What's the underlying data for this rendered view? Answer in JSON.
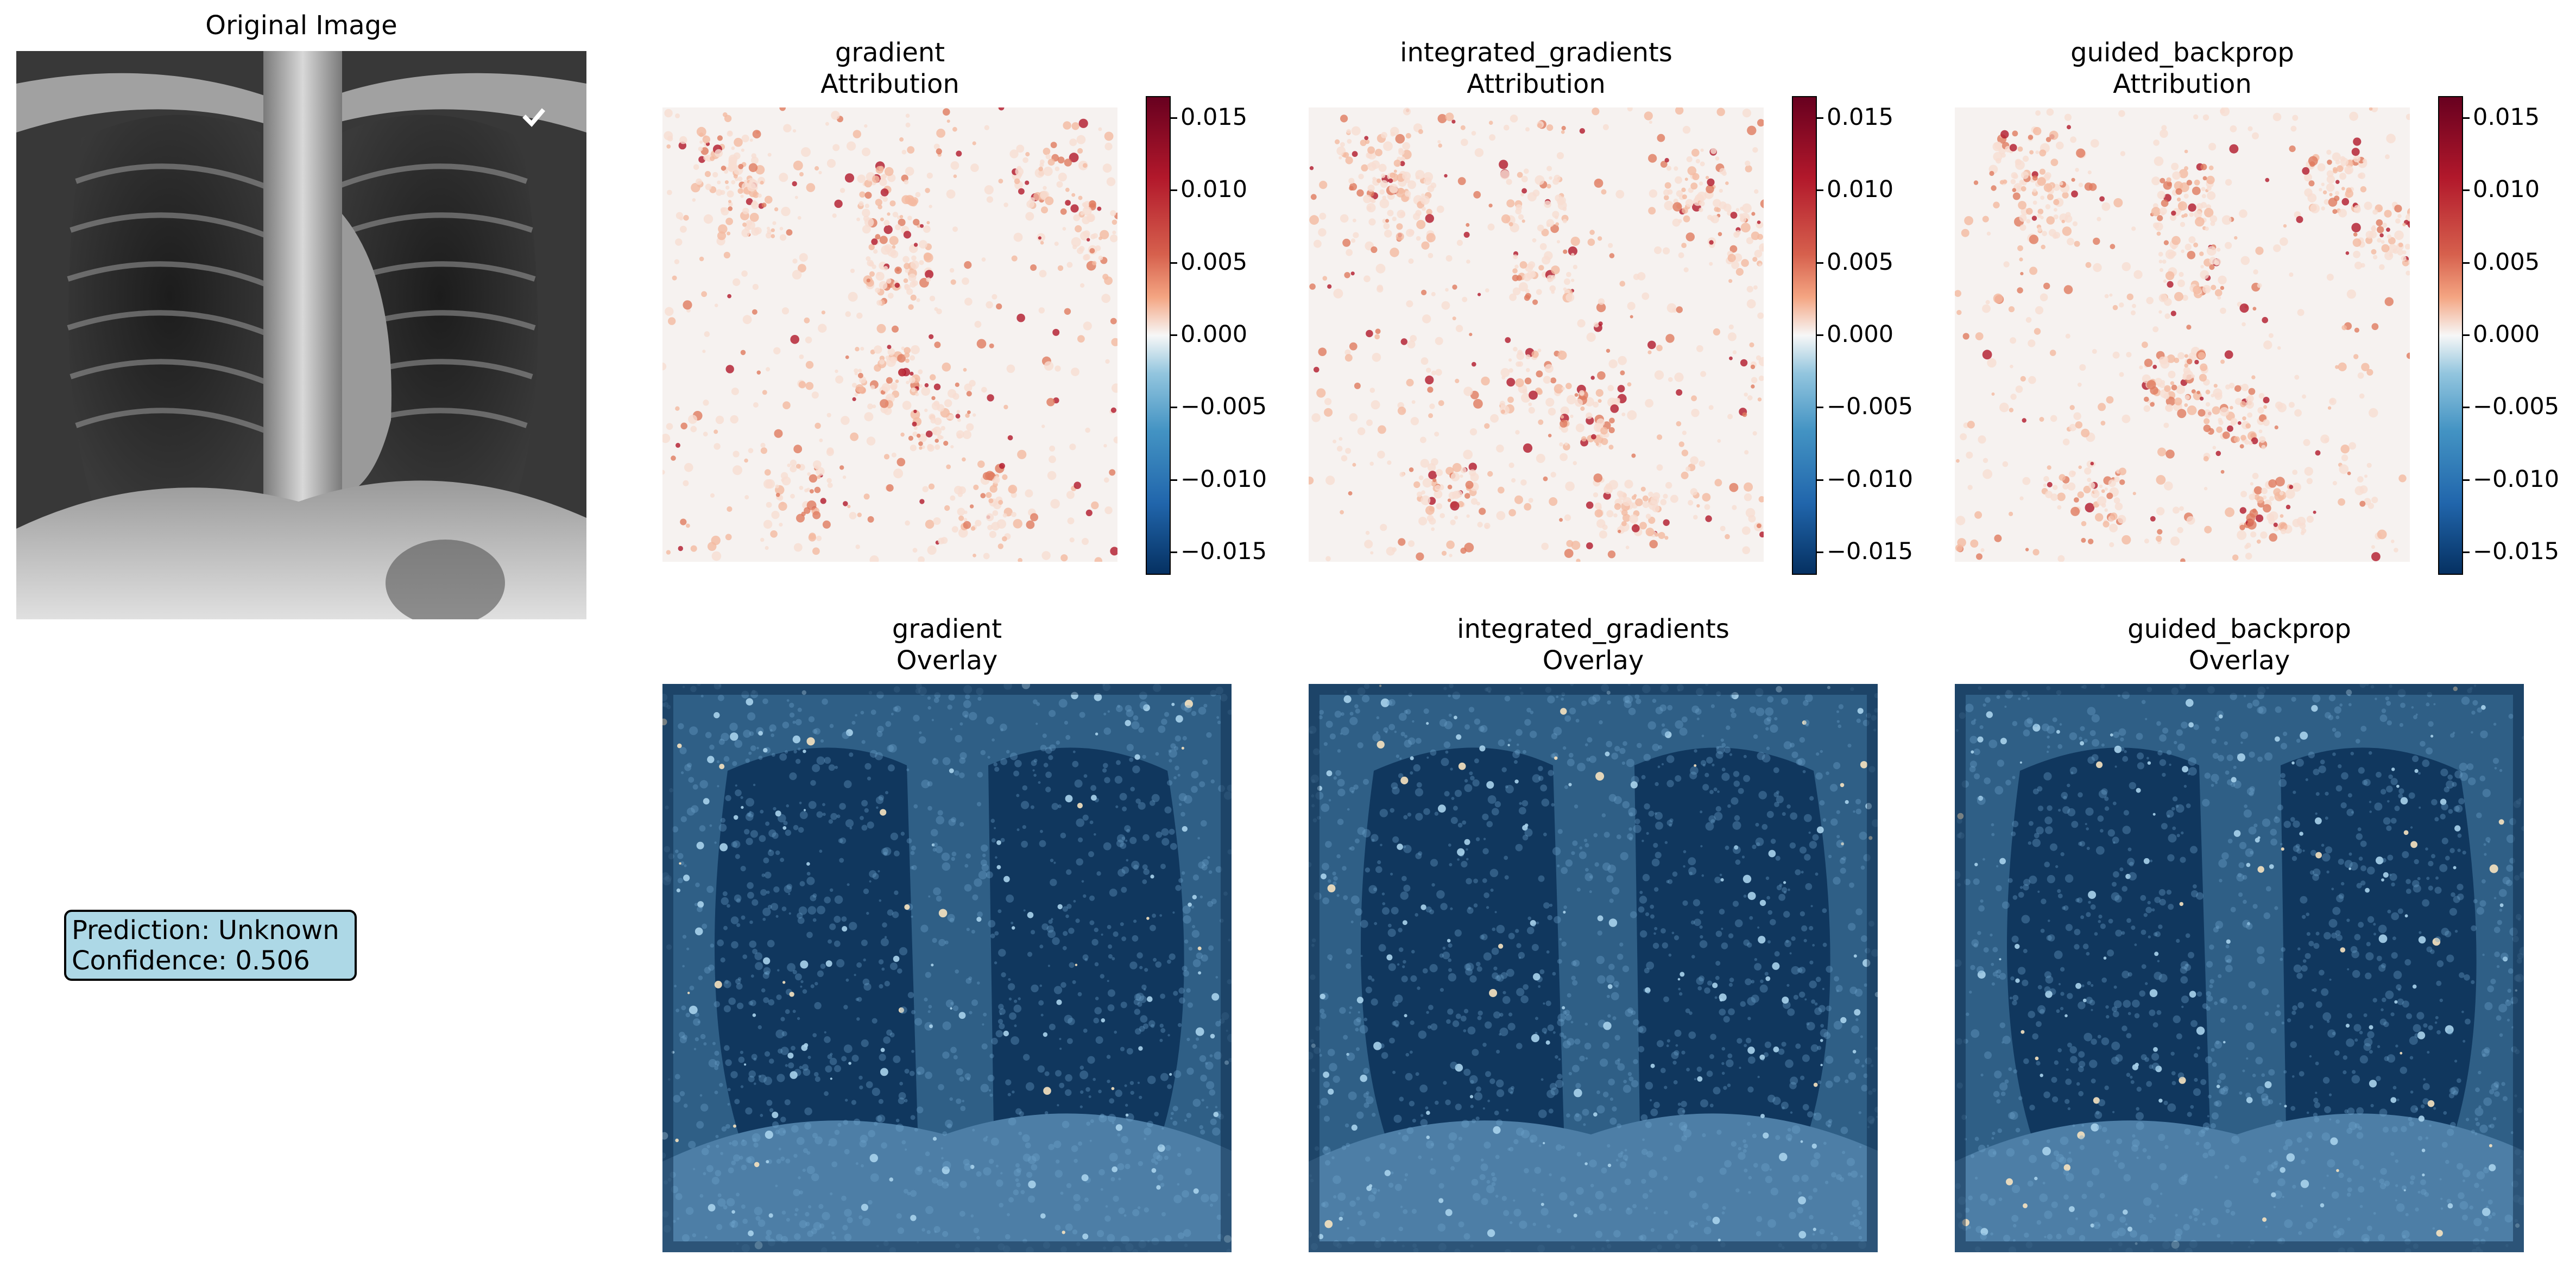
{
  "original": {
    "title": "Original Image"
  },
  "prediction": {
    "line1": "Prediction: Unknown",
    "line2": "Confidence: 0.506"
  },
  "methods": [
    {
      "name": "gradient",
      "attribution_title": "gradient\nAttribution",
      "overlay_title": "gradient\nOverlay"
    },
    {
      "name": "integrated_gradients",
      "attribution_title": "integrated_gradients\nAttribution",
      "overlay_title": "integrated_gradients\nOverlay"
    },
    {
      "name": "guided_backprop",
      "attribution_title": "guided_backprop\nAttribution",
      "overlay_title": "guided_backprop\nOverlay"
    }
  ],
  "colorbar": {
    "colormap": "RdBu_r",
    "range": [
      -0.0165,
      0.0165
    ],
    "ticks": [
      0.015,
      0.01,
      0.005,
      0.0,
      -0.005,
      -0.01,
      -0.015
    ],
    "tick_labels": [
      "0.015",
      "0.010",
      "0.005",
      "0.000",
      "−0.005",
      "−0.010",
      "−0.015"
    ]
  },
  "colors": {
    "red_dark": "#67001f",
    "red": "#d6604d",
    "pink": "#f4a582",
    "white": "#f7f7f7",
    "light_blue": "#92c5de",
    "blue": "#4393c3",
    "blue_dark": "#053061",
    "overlay_base": "#10375e",
    "pred_box": "#add8e6"
  },
  "chart_data": [
    {
      "type": "heatmap",
      "title": "Original Image"
    },
    {
      "type": "heatmap",
      "title": "gradient\nAttribution",
      "colorbar_ticks": [
        "0.015",
        "0.010",
        "0.005",
        "0.000",
        "−0.005",
        "−0.010",
        "−0.015"
      ]
    },
    {
      "type": "heatmap",
      "title": "integrated_gradients\nAttribution",
      "colorbar_ticks": [
        "0.015",
        "0.010",
        "0.005",
        "0.000",
        "−0.005",
        "−0.010",
        "−0.015"
      ]
    },
    {
      "type": "heatmap",
      "title": "guided_backprop\nAttribution",
      "colorbar_ticks": [
        "0.015",
        "0.010",
        "0.005",
        "0.000",
        "−0.005",
        "−0.010",
        "−0.015"
      ]
    },
    {
      "type": "heatmap",
      "title": "gradient\nOverlay"
    },
    {
      "type": "heatmap",
      "title": "integrated_gradients\nOverlay"
    },
    {
      "type": "heatmap",
      "title": "guided_backprop\nOverlay"
    }
  ]
}
